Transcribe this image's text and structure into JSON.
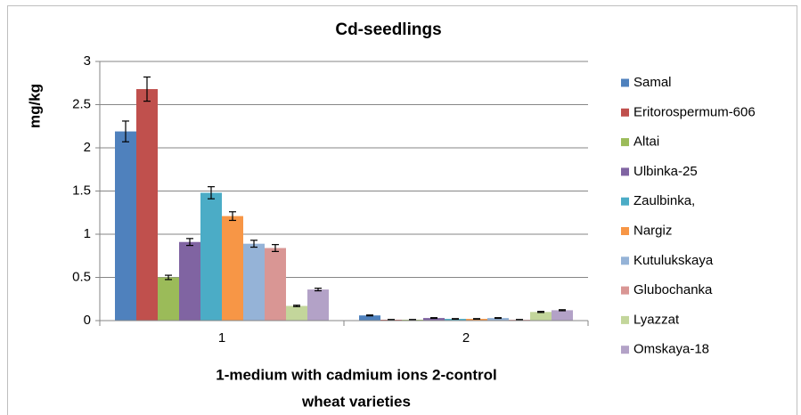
{
  "chart_data": {
    "type": "bar",
    "title": "Cd-seedlings",
    "y_label": "mg/kg",
    "x_label": [
      "1-medium with cadmium ions 2-control",
      "wheat varieties"
    ],
    "categories": [
      "1",
      "2"
    ],
    "ylim": [
      0,
      3
    ],
    "yticks": [
      0,
      0.5,
      1,
      1.5,
      2,
      2.5,
      3
    ],
    "grid": true,
    "legend": "right",
    "series": [
      {
        "name": "Samal",
        "color": "#4f81bd",
        "values": [
          2.19,
          0.06
        ],
        "errors": [
          0.12,
          0.005
        ]
      },
      {
        "name": "Eritorospermum-606",
        "color": "#c0504d",
        "values": [
          2.68,
          0.01
        ],
        "errors": [
          0.14,
          0.003
        ]
      },
      {
        "name": "Altai",
        "color": "#9bbb59",
        "values": [
          0.5,
          0.01
        ],
        "errors": [
          0.025,
          0.003
        ]
      },
      {
        "name": "Ulbinka-25",
        "color": "#8064a2",
        "values": [
          0.91,
          0.03
        ],
        "errors": [
          0.04,
          0.004
        ]
      },
      {
        "name": "Zaulbinka,",
        "color": "#4bacc6",
        "values": [
          1.48,
          0.02
        ],
        "errors": [
          0.07,
          0.003
        ]
      },
      {
        "name": "Nargiz",
        "color": "#f79646",
        "values": [
          1.21,
          0.02
        ],
        "errors": [
          0.05,
          0.003
        ]
      },
      {
        "name": "Kutulukskaya",
        "color": "#95b3d7",
        "values": [
          0.89,
          0.03
        ],
        "errors": [
          0.04,
          0.004
        ]
      },
      {
        "name": "Glubochanka",
        "color": "#d99694",
        "values": [
          0.84,
          0.01
        ],
        "errors": [
          0.04,
          0.003
        ]
      },
      {
        "name": "Lyazzat",
        "color": "#c3d69b",
        "values": [
          0.17,
          0.1
        ],
        "errors": [
          0.008,
          0.006
        ]
      },
      {
        "name": "Omskaya-18",
        "color": "#b3a2c7",
        "values": [
          0.36,
          0.12
        ],
        "errors": [
          0.015,
          0.006
        ]
      }
    ]
  }
}
